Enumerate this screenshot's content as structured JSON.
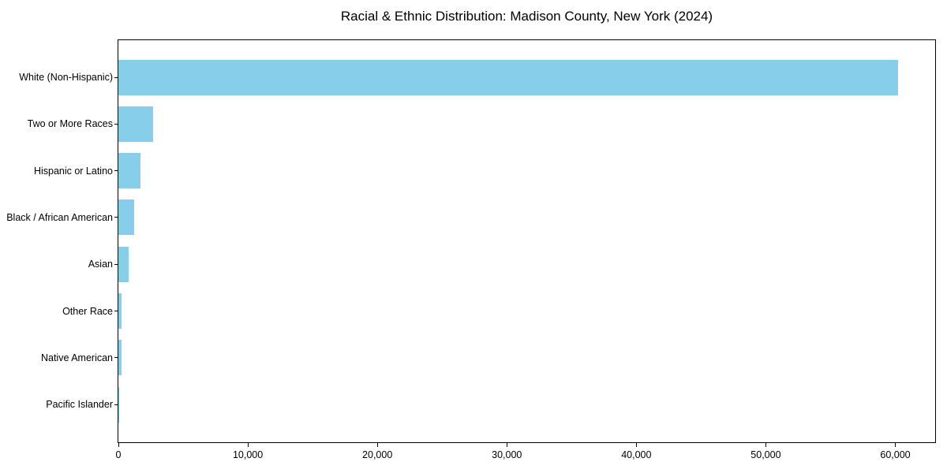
{
  "chart_data": {
    "type": "bar",
    "orientation": "horizontal",
    "title": "Racial & Ethnic Distribution: Madison County, New York (2024)",
    "xlabel": "",
    "ylabel": "",
    "categories": [
      "White (Non-Hispanic)",
      "Two or More Races",
      "Hispanic or Latino",
      "Black / African American",
      "Asian",
      "Other Race",
      "Native American",
      "Pacific Islander"
    ],
    "values": [
      60200,
      2680,
      1730,
      1200,
      800,
      230,
      220,
      20
    ],
    "x_ticks": [
      {
        "value": 0,
        "label": "0"
      },
      {
        "value": 10000,
        "label": "10,000"
      },
      {
        "value": 20000,
        "label": "20,000"
      },
      {
        "value": 30000,
        "label": "30,000"
      },
      {
        "value": 40000,
        "label": "40,000"
      },
      {
        "value": 50000,
        "label": "50,000"
      },
      {
        "value": 60000,
        "label": "60,000"
      }
    ],
    "xlim": [
      0,
      63200
    ],
    "grid": false,
    "legend": "none",
    "bar_color": "#87CEEB",
    "axis_color": "#000000",
    "background_color": "#ffffff"
  }
}
